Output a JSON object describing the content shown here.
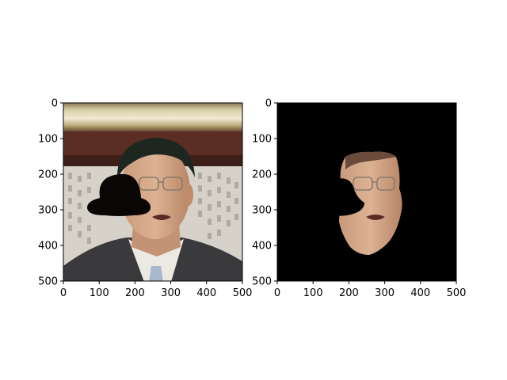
{
  "chart_data": [
    {
      "type": "image",
      "title": "",
      "xlabel": "",
      "ylabel": "",
      "xlim": [
        0,
        500
      ],
      "ylim": [
        500,
        0
      ],
      "xticks": [
        0,
        100,
        200,
        300,
        400,
        500
      ],
      "yticks": [
        0,
        100,
        200,
        300,
        400,
        500
      ],
      "xtick_labels": [
        "0",
        "100",
        "200",
        "300",
        "400",
        "500"
      ],
      "ytick_labels": [
        "0",
        "100",
        "200",
        "300",
        "400",
        "500"
      ],
      "content": "portrait photo of a man in suit and tie; black hat-shaped occluder over the left eye region",
      "grid": false
    },
    {
      "type": "image",
      "title": "",
      "xlabel": "",
      "ylabel": "",
      "xlim": [
        0,
        500
      ],
      "ylim": [
        500,
        0
      ],
      "xticks": [
        0,
        100,
        200,
        300,
        400,
        500
      ],
      "yticks": [
        0,
        100,
        200,
        300,
        400,
        500
      ],
      "xtick_labels": [
        "0",
        "100",
        "200",
        "300",
        "400",
        "500"
      ],
      "ytick_labels": [
        "0",
        "100",
        "200",
        "300",
        "400",
        "500"
      ],
      "content": "segmented face region on black background, occluded area removed",
      "grid": false
    }
  ],
  "colors": {
    "background": "#ffffff",
    "mask_background": "#000000",
    "occluder": "#0a0606",
    "skin": "#d4a888",
    "hair": "#1e2620",
    "suit": "#3a3a3c",
    "shirt": "#ece8e2",
    "wall": "#d8d4cc"
  }
}
